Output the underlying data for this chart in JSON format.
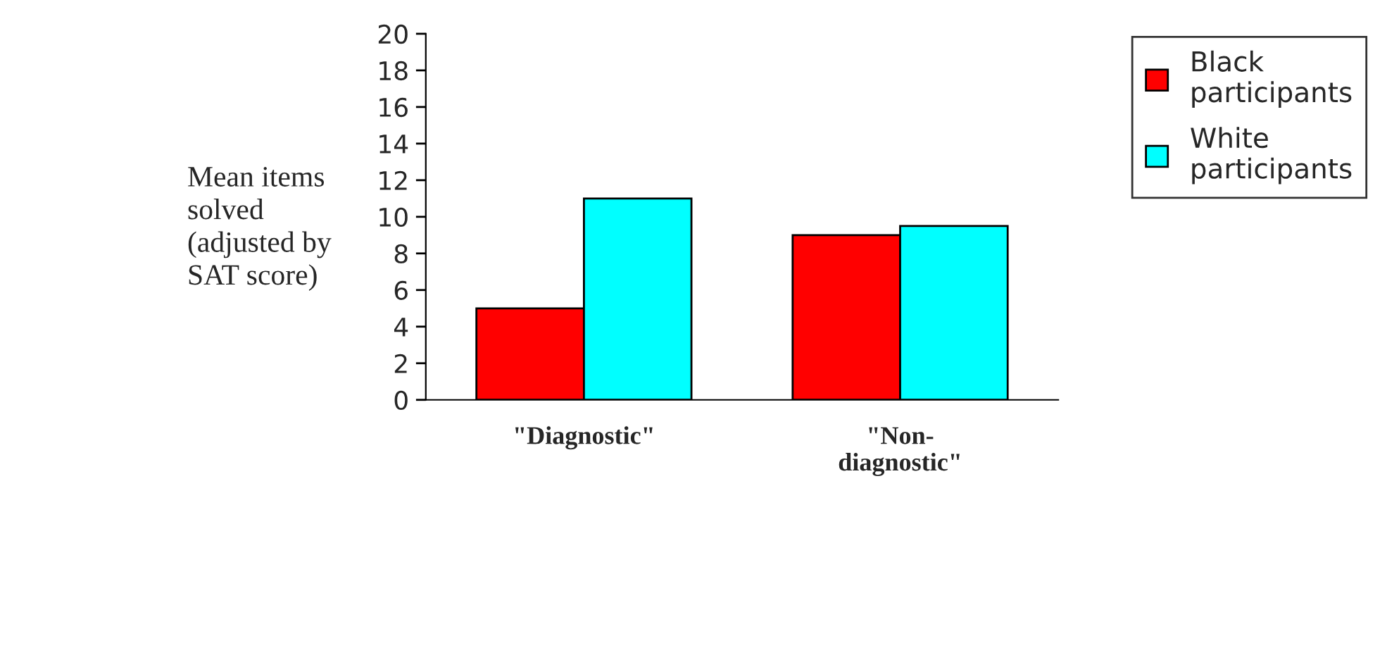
{
  "chart_data": {
    "type": "bar",
    "categories": [
      "\"Diagnostic\"",
      "\"Non-\ndiagnostic\""
    ],
    "ylabel": "Mean items\nsolved\n(adjusted by\nSAT score)",
    "series": [
      {
        "name": "Black\nparticipants",
        "color": "#ff0000",
        "values": [
          5,
          9
        ]
      },
      {
        "name": "White\nparticipants",
        "color": "#00ffff",
        "values": [
          11,
          9.5
        ]
      }
    ],
    "ylim": [
      0,
      20
    ],
    "yticks": [
      0,
      2,
      4,
      6,
      8,
      10,
      12,
      14,
      16,
      18,
      20
    ],
    "grid": false,
    "legend": "top right"
  }
}
